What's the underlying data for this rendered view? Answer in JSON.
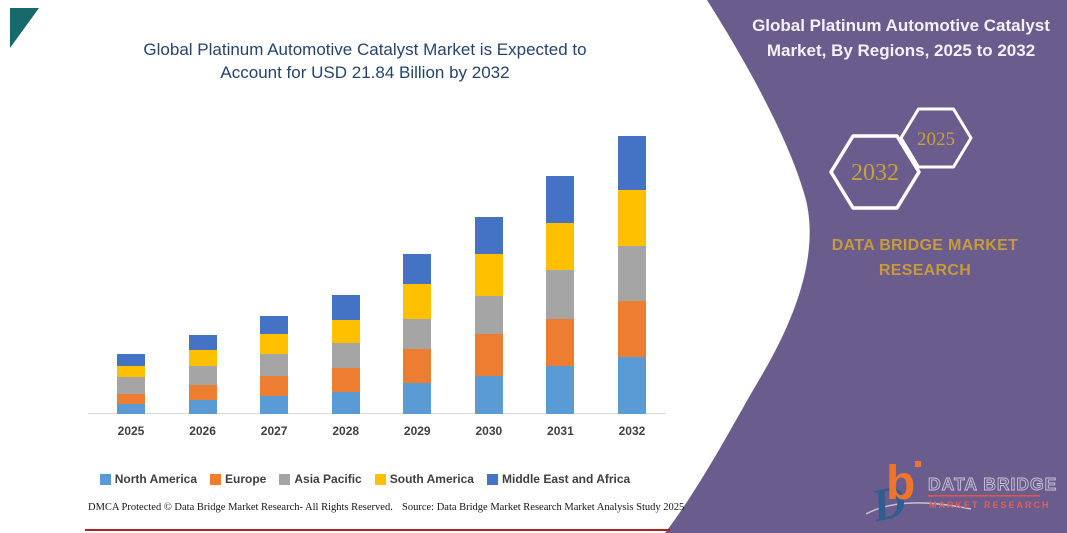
{
  "branding": {
    "corner_triangle_color": "#17696B",
    "bottom_line_color": "#B22222",
    "panel_color": "#6A5C8C",
    "gold": "#C79A3B",
    "title_color": "#24446C"
  },
  "chart": {
    "title_line1": "Global Platinum Automotive Catalyst Market is Expected to",
    "title_line2": "Account for USD 21.84 Billion by 2032"
  },
  "chart_data": {
    "type": "bar",
    "stacked": true,
    "title": "Global Platinum Automotive Catalyst Market is Expected to Account for USD 21.84 Billion by 2032",
    "unit": "USD Billion",
    "categories": [
      "2025",
      "2026",
      "2027",
      "2028",
      "2029",
      "2030",
      "2031",
      "2032"
    ],
    "series": [
      {
        "name": "North America",
        "color": "#5B9BD5",
        "values": [
          0.8,
          1.1,
          1.4,
          1.7,
          2.4,
          3.0,
          3.8,
          4.46
        ]
      },
      {
        "name": "Europe",
        "color": "#ED7D31",
        "values": [
          0.8,
          1.2,
          1.6,
          1.9,
          2.7,
          3.3,
          3.7,
          4.41
        ]
      },
      {
        "name": "Asia Pacific",
        "color": "#A5A5A5",
        "values": [
          1.3,
          1.5,
          1.7,
          2.0,
          2.4,
          3.0,
          3.8,
          4.38
        ]
      },
      {
        "name": "South America",
        "color": "#FFC000",
        "values": [
          0.9,
          1.2,
          1.6,
          1.8,
          2.7,
          3.3,
          3.7,
          4.35
        ]
      },
      {
        "name": "Middle East and Africa",
        "color": "#4472C4",
        "values": [
          0.9,
          1.2,
          1.4,
          2.0,
          2.4,
          2.9,
          3.7,
          4.24
        ]
      }
    ],
    "totals": [
      4.7,
      6.2,
      7.7,
      9.4,
      12.6,
      15.5,
      18.7,
      21.84
    ],
    "ylim": [
      0,
      22
    ],
    "y_axis_visible": false,
    "grid": false,
    "legend_position": "bottom"
  },
  "panel": {
    "heading_line1": "Global Platinum Automotive Catalyst",
    "heading_line2": "Market, By Regions, 2025 to 2032",
    "hexagons": [
      {
        "label": "2032"
      },
      {
        "label": "2025"
      }
    ],
    "brand_line1": "DATA BRIDGE MARKET",
    "brand_line2": "RESEARCH"
  },
  "logo": {
    "letter_b": "b",
    "letter_d": "D",
    "text_top": "DATA BRIDGE",
    "text_bottom": "MARKET RESEARCH"
  },
  "footer": {
    "left": "DMCA Protected © Data Bridge Market Research-  All Rights Reserved.",
    "right": "Source: Data Bridge Market Research  Market Analysis Study 2025"
  }
}
